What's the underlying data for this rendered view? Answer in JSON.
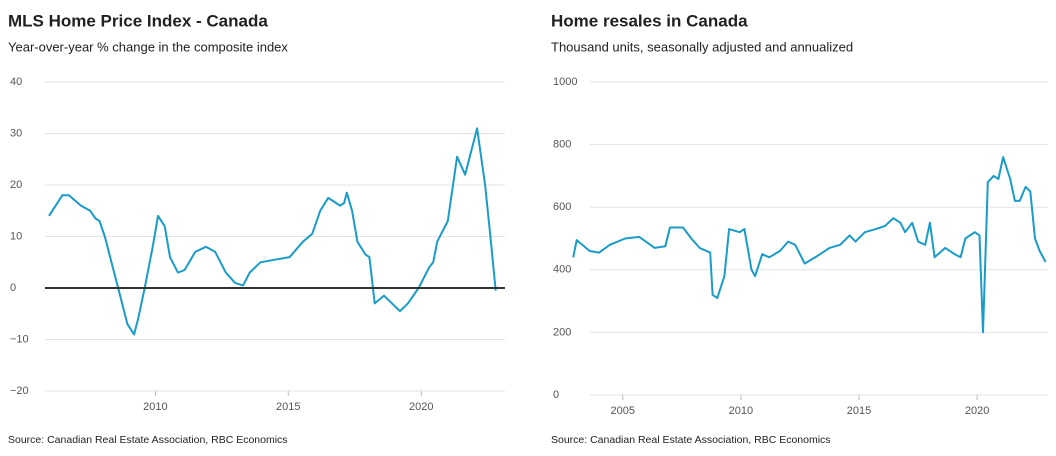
{
  "chart_data": [
    {
      "type": "line",
      "title": "MLS Home Price Index - Canada",
      "subtitle": "Year-over-year % change in the composite index",
      "source": "Source: Canadian Real Estate Association, RBC Economics",
      "x": [
        2006.0,
        2006.5,
        2006.75,
        2007.2,
        2007.55,
        2007.75,
        2007.9,
        2008.1,
        2008.4,
        2008.7,
        2008.95,
        2009.2,
        2009.35,
        2009.6,
        2009.9,
        2010.1,
        2010.35,
        2010.55,
        2010.85,
        2011.1,
        2011.5,
        2011.9,
        2012.25,
        2012.65,
        2013.0,
        2013.3,
        2013.55,
        2013.95,
        2014.5,
        2015.05,
        2015.55,
        2015.9,
        2016.2,
        2016.5,
        2016.95,
        2017.1,
        2017.2,
        2017.4,
        2017.6,
        2017.9,
        2018.05,
        2018.25,
        2018.6,
        2019.2,
        2019.5,
        2019.9,
        2020.3,
        2020.45,
        2020.6,
        2021.0,
        2021.35,
        2021.65,
        2021.9,
        2022.1,
        2022.4,
        2022.6,
        2022.8
      ],
      "values": [
        14,
        18,
        18,
        16,
        15,
        13.5,
        13,
        10,
        4,
        -2,
        -7,
        -9,
        -6,
        0,
        8,
        14,
        12,
        6,
        3,
        3.5,
        7,
        8,
        7,
        3,
        1,
        0.5,
        3,
        5,
        5.5,
        6,
        9,
        10.5,
        15,
        17.5,
        16,
        16.5,
        18.5,
        15,
        9,
        6.5,
        6,
        -3,
        -1.5,
        -4.5,
        -3,
        0,
        4,
        5,
        9,
        13,
        25.5,
        22,
        27,
        31,
        20,
        10,
        -0.5
      ],
      "color": "#1a9bc8",
      "xlim": [
        2005.85,
        2023.15
      ],
      "ylim": [
        -20,
        40
      ],
      "xticks": [
        2010,
        2015,
        2020
      ],
      "yticks": [
        {
          "value": -20,
          "label": "−20"
        },
        {
          "value": -10,
          "label": "−10"
        },
        0,
        10,
        20,
        30,
        40
      ],
      "grid": true,
      "zero_line": true
    },
    {
      "type": "line",
      "title": "Home resales in Canada",
      "subtitle": "Thousand units, seasonally adjusted and annualized",
      "source": "Source: Canadian Real Estate Association, RBC Economics",
      "x": [
        2002.9,
        2003.05,
        2003.6,
        2004.0,
        2004.45,
        2005.1,
        2005.7,
        2006.35,
        2006.8,
        2007.0,
        2007.55,
        2007.9,
        2008.25,
        2008.7,
        2008.8,
        2009.0,
        2009.3,
        2009.5,
        2009.95,
        2010.15,
        2010.45,
        2010.6,
        2010.9,
        2011.2,
        2011.65,
        2012.0,
        2012.3,
        2012.7,
        2013.15,
        2013.75,
        2014.2,
        2014.6,
        2014.85,
        2015.25,
        2015.7,
        2016.1,
        2016.45,
        2016.75,
        2016.95,
        2017.25,
        2017.5,
        2017.8,
        2018.0,
        2018.2,
        2018.65,
        2019.05,
        2019.3,
        2019.5,
        2019.9,
        2020.1,
        2020.25,
        2020.45,
        2020.7,
        2020.9,
        2021.1,
        2021.4,
        2021.6,
        2021.8,
        2022.05,
        2022.25,
        2022.45,
        2022.65,
        2022.9
      ],
      "values": [
        440,
        495,
        460,
        455,
        480,
        500,
        505,
        470,
        475,
        535,
        535,
        500,
        470,
        455,
        320,
        310,
        380,
        530,
        520,
        530,
        400,
        380,
        450,
        440,
        460,
        490,
        480,
        420,
        440,
        470,
        480,
        510,
        490,
        520,
        530,
        540,
        565,
        550,
        520,
        550,
        490,
        480,
        550,
        440,
        470,
        450,
        440,
        500,
        520,
        510,
        200,
        680,
        700,
        690,
        760,
        690,
        620,
        620,
        665,
        650,
        500,
        460,
        425
      ],
      "color": "#1a9bc8",
      "xlim": [
        2002.85,
        2023.0
      ],
      "ylim": [
        0,
        1000
      ],
      "xticks": [
        2005,
        2010,
        2015,
        2020
      ],
      "yticks": [
        0,
        200,
        400,
        600,
        800,
        1000
      ],
      "grid": true,
      "zero_line": false
    }
  ]
}
